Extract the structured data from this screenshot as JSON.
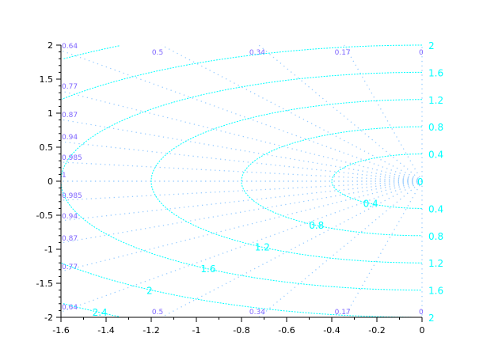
{
  "chart_data": {
    "type": "line",
    "title": "",
    "xlabel": "",
    "ylabel": "",
    "xlim": [
      -1.6,
      0
    ],
    "ylim": [
      -2,
      2
    ],
    "x_ticks": [
      "-1.6",
      "-1.4",
      "-1.2",
      "-1",
      "-0.8",
      "-0.6",
      "-0.4",
      "-0.2",
      "0"
    ],
    "y_ticks": [
      "-2",
      "-1.5",
      "-1",
      "-0.5",
      "0",
      "0.5",
      "1",
      "1.5",
      "2"
    ],
    "damping_ratios": [
      {
        "value": 0,
        "label": "0"
      },
      {
        "value": 0.17,
        "label": "0.17"
      },
      {
        "value": 0.34,
        "label": "0.34"
      },
      {
        "value": 0.5,
        "label": "0.5"
      },
      {
        "value": 0.64,
        "label": "0.64"
      },
      {
        "value": 0.77,
        "label": "0.77"
      },
      {
        "value": 0.87,
        "label": "0.87"
      },
      {
        "value": 0.94,
        "label": "0.94"
      },
      {
        "value": 0.985,
        "label": "0.985"
      },
      {
        "value": 1,
        "label": "1"
      }
    ],
    "natural_frequencies": [
      {
        "value": 0.4,
        "label": "0.4"
      },
      {
        "value": 0.8,
        "label": "0.8"
      },
      {
        "value": 1.2,
        "label": "1.2"
      },
      {
        "value": 1.6,
        "label": "1.6"
      },
      {
        "value": 2,
        "label": "2"
      },
      {
        "value": 2.4,
        "label": "2.4"
      }
    ],
    "origin_label": "0",
    "colors": {
      "damping_lines": "#99ccff",
      "damping_labels": "#7f66ff",
      "frequency_curves": "#00ffff",
      "axes": "#000000"
    }
  }
}
